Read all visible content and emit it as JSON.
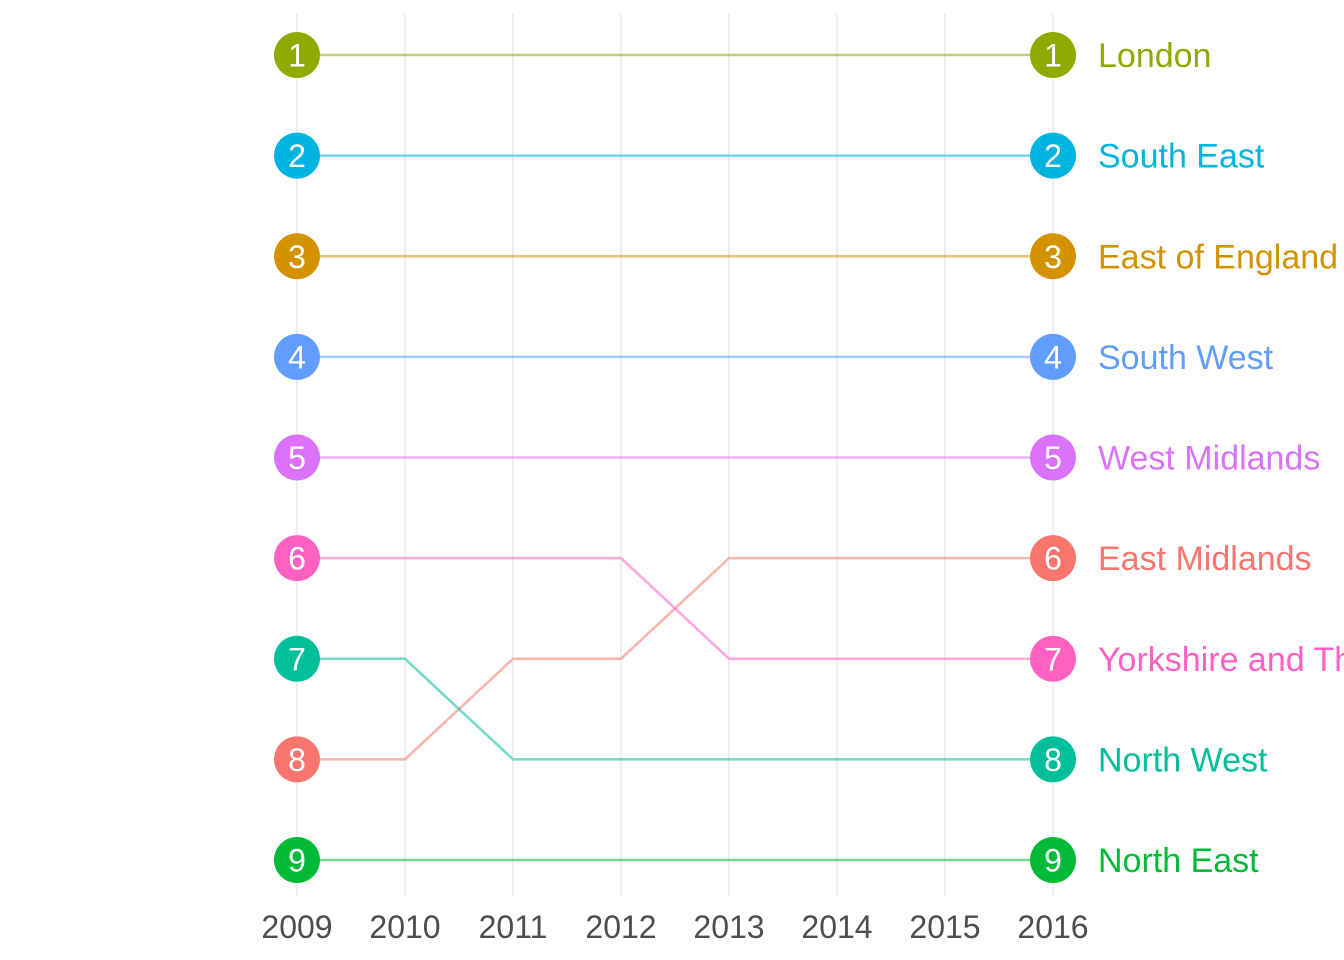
{
  "chart_data": {
    "type": "line",
    "title": "",
    "subtitle": "",
    "xlabel": "",
    "ylabel": "",
    "x": [
      2009,
      2010,
      2011,
      2012,
      2013,
      2014,
      2015,
      2016
    ],
    "x_tick_labels": [
      "2009",
      "2010",
      "2011",
      "2012",
      "2013",
      "2014",
      "2015",
      "2016"
    ],
    "xlim": [
      2009,
      2016
    ],
    "ylim": [
      1,
      9
    ],
    "y_reversed": true,
    "y_meaning": "rank",
    "grid": "vertical-major",
    "legend": "direct labels at right end",
    "rank_badges_shown_at": [
      2009,
      2016
    ],
    "series": [
      {
        "name": "London",
        "color": "#8FAA00",
        "values": [
          1,
          1,
          1,
          1,
          1,
          1,
          1,
          1
        ]
      },
      {
        "name": "South East",
        "color": "#00B4E0",
        "values": [
          2,
          2,
          2,
          2,
          2,
          2,
          2,
          2
        ]
      },
      {
        "name": "East of England",
        "color": "#D39200",
        "values": [
          3,
          3,
          3,
          3,
          3,
          3,
          3,
          3
        ]
      },
      {
        "name": "South West",
        "color": "#619CFF",
        "values": [
          4,
          4,
          4,
          4,
          4,
          4,
          4,
          4
        ]
      },
      {
        "name": "West Midlands",
        "color": "#DB72FB",
        "values": [
          5,
          5,
          5,
          5,
          5,
          5,
          5,
          5
        ]
      },
      {
        "name": "East Midlands",
        "color": "#F8766D",
        "values": [
          8,
          8,
          7,
          7,
          6,
          6,
          6,
          6
        ]
      },
      {
        "name": "Yorkshire and The Humber",
        "color": "#FF61C3",
        "values": [
          6,
          6,
          6,
          6,
          7,
          7,
          7,
          7
        ]
      },
      {
        "name": "North West",
        "color": "#00BF9A",
        "values": [
          7,
          7,
          8,
          8,
          8,
          8,
          8,
          8
        ]
      },
      {
        "name": "North East",
        "color": "#00BA38",
        "values": [
          9,
          9,
          9,
          9,
          9,
          9,
          9,
          9
        ]
      }
    ]
  }
}
